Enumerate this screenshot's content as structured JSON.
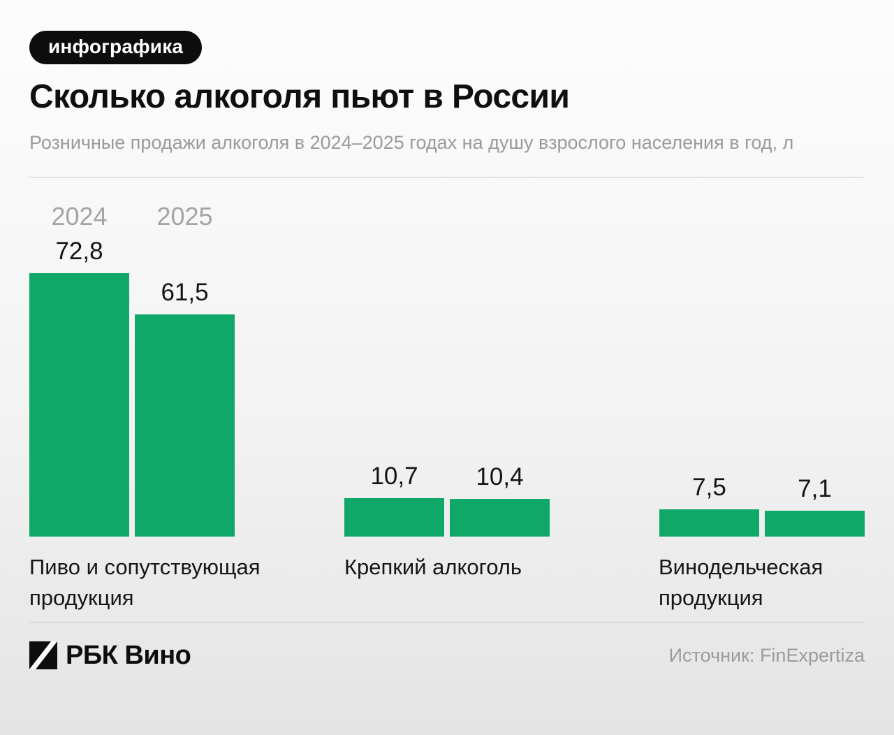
{
  "badge": {
    "label": "инфографика"
  },
  "header": {
    "title": "Сколько алкоголя пьют в России",
    "subtitle": "Розничные продажи алкоголя в 2024–2025 годах на душу взрослого населения в год, л"
  },
  "chart_data": {
    "type": "bar",
    "categories": [
      "Пиво и сопутствующая продукция",
      "Крепкий алкоголь",
      "Винодельческая продукция"
    ],
    "series": [
      {
        "name": "2024",
        "values": [
          72.8,
          10.7,
          7.5
        ]
      },
      {
        "name": "2025",
        "values": [
          61.5,
          10.4,
          7.1
        ]
      }
    ],
    "decimal_separator": ",",
    "ylim": [
      0,
      72.8
    ],
    "grid": false,
    "legend_position": "top-left over first group",
    "value_labels": "above bars"
  },
  "colors": {
    "bar_green": "#0fa869",
    "badge_black": "#0d0d0d",
    "subtitle_gray": "#9a9a9a",
    "legend_gray": "#a4a4a4",
    "divider_gray": "#c9c9c9",
    "source_gray": "#9b9b9b"
  },
  "footer": {
    "logo_text": "РБК Вино",
    "source": "Источник: FinExpertiza"
  }
}
